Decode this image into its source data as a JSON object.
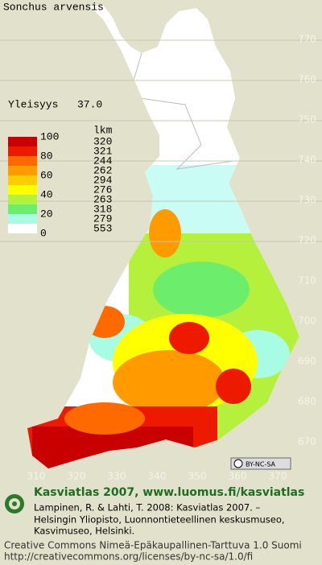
{
  "title": "Sonchus arvensis",
  "frequency": {
    "label": "Yleisyys",
    "value": "37.0"
  },
  "legend": {
    "count_header": "lkm",
    "class_labels": [
      100,
      80,
      60,
      40,
      20,
      0
    ],
    "counts": [
      320,
      321,
      244,
      262,
      294,
      276,
      263,
      318,
      279,
      553
    ],
    "colors": [
      "#c80000",
      "#ee1a00",
      "#ff6a00",
      "#ff9a00",
      "#ffcc00",
      "#ffff00",
      "#b4f03c",
      "#6cee6c",
      "#a8fce4",
      "#ffffff"
    ]
  },
  "northing_labels": [
    770,
    760,
    750,
    740,
    730,
    720,
    710,
    700,
    690,
    680,
    670
  ],
  "easting_labels": [
    310,
    320,
    330,
    340,
    350,
    360,
    370
  ],
  "license_badge": "BY-NC-SA",
  "footer": {
    "heading": "Kasviatlas 2007, www.luomus.fi/kasviatlas",
    "citation": [
      "Lampinen, R. & Lahti, T. 2008: Kasviatlas 2007. –",
      "Helsingin Yliopisto, Luonnontieteellinen keskusmuseo,",
      "Kasvimuseo, Helsinki."
    ],
    "license": [
      "Creative Commons Nimeä-Epäkaupallinen-Tarttuva 1.0 Suomi",
      "http://creativecommons.org/licenses/by-nc-sa/1.0/fi"
    ]
  }
}
